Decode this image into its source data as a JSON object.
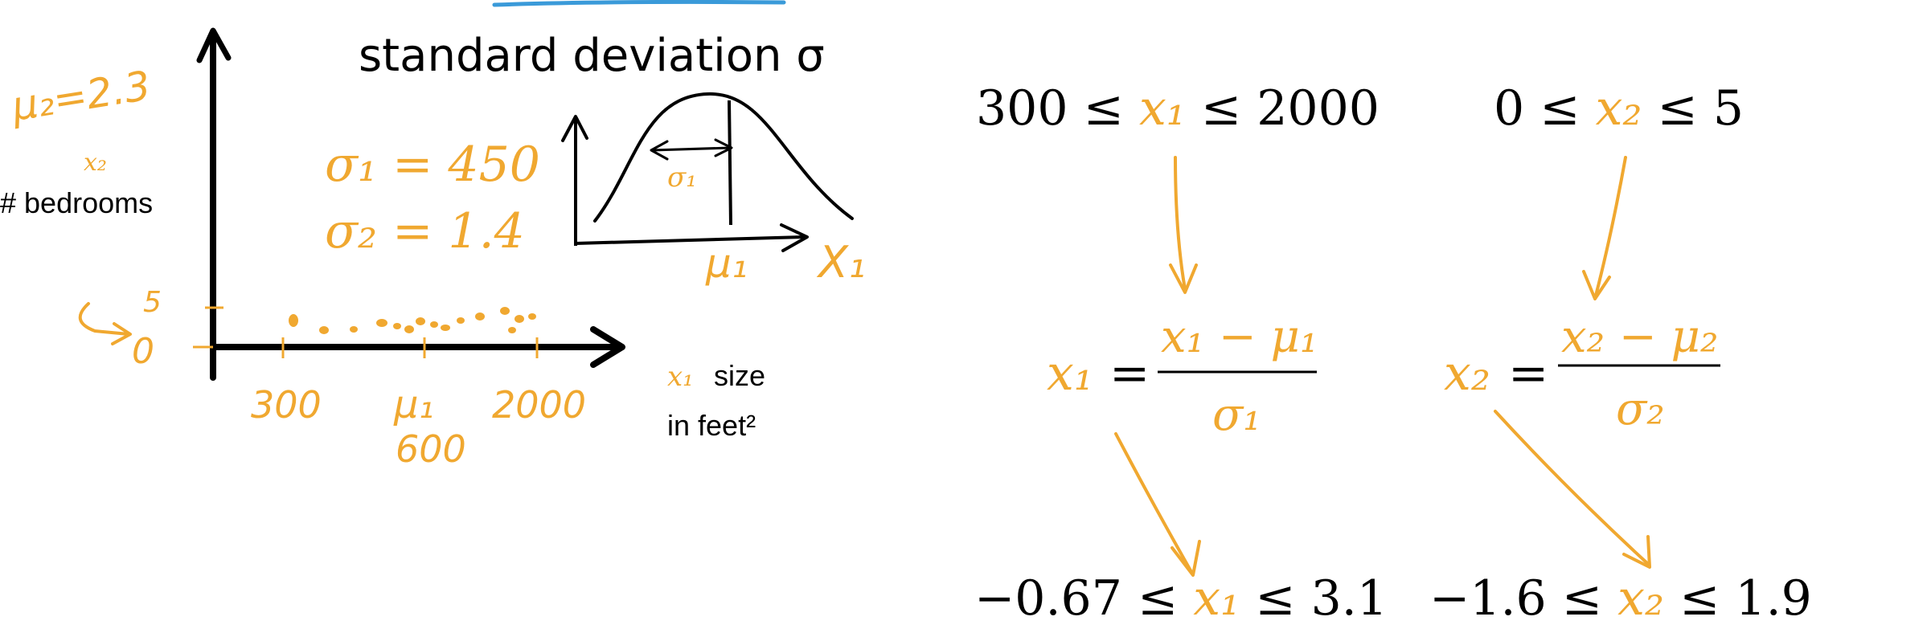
{
  "colors": {
    "ink": "#000000",
    "accent": "#f0a830",
    "underline": "#3a9ad9",
    "background": "#ffffff"
  },
  "plot": {
    "y_axis_label": "# bedrooms",
    "y_var": "x₂",
    "mu2_note": "μ₂=2.3",
    "tick_5": "5",
    "tick_0": "0",
    "x_tick_left": "300",
    "x_tick_mid": "μ₁",
    "x_tick_mid_value": "600",
    "x_tick_right": "2000",
    "x_var": "x₁",
    "x_axis_label_line1": "size",
    "x_axis_label_line2": "in feet²",
    "sigma1_note": "σ₁ = 450",
    "sigma2_note": "σ₂ = 1.4"
  },
  "inset": {
    "title": "standard deviation σ",
    "width_label": "σ₁",
    "mean_label": "μ₁",
    "axis_label": "X₁"
  },
  "equations": {
    "range1_left": "300 ≤ ",
    "range1_var": "x₁",
    "range1_right": " ≤ 2000",
    "range2_left": "0 ≤ ",
    "range2_var": "x₂",
    "range2_right": " ≤ 5",
    "f1_lhs": "x₁",
    "f1_eq": "=",
    "f1_num": "x₁ − μ₁",
    "f1_den": "σ₁",
    "f2_lhs": "x₂",
    "f2_eq": "=",
    "f2_num": "x₂ − μ₂",
    "f2_den": "σ₂",
    "result1_left": "−0.67 ≤ ",
    "result1_var": "x₁",
    "result1_right": " ≤ 3.1",
    "result2_left": "−1.6 ≤ ",
    "result2_var": "x₂",
    "result2_right": " ≤ 1.9"
  }
}
